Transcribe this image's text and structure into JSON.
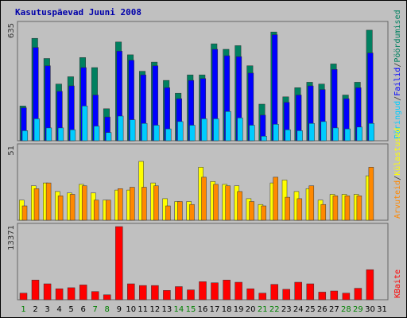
{
  "title": "Kasutuspäevad Juuni 2008",
  "colors": {
    "visits": "#008060",
    "pages": "#0000ff",
    "hits": "#00ccff",
    "unique": "#ffff00",
    "visits_top": "#ff8800",
    "bandwidth": "#ff0000",
    "weekday_label": "#000000",
    "weekend_label": "#008000",
    "title": "#0000aa"
  },
  "chart_data": [
    {
      "type": "bar",
      "panel": "top",
      "ymax_label": "635",
      "ylim": [
        0,
        635
      ],
      "categories": [
        "1",
        "2",
        "3",
        "4",
        "5",
        "6",
        "7",
        "8",
        "9",
        "10",
        "11",
        "12",
        "13",
        "14",
        "15",
        "16",
        "17",
        "18",
        "19",
        "20",
        "21",
        "22",
        "23",
        "24",
        "25",
        "26",
        "27",
        "28",
        "29",
        "30",
        "31"
      ],
      "legend": [
        "Päringud",
        "Failid",
        "Pöördumised"
      ],
      "series": [
        {
          "name": "Pöördumised",
          "values": [
            190,
            560,
            450,
            310,
            350,
            455,
            400,
            175,
            540,
            470,
            380,
            430,
            330,
            260,
            360,
            360,
            530,
            500,
            520,
            410,
            200,
            595,
            240,
            290,
            320,
            310,
            420,
            250,
            320,
            605,
            0
          ]
        },
        {
          "name": "Failid",
          "values": [
            180,
            510,
            410,
            270,
            300,
            400,
            250,
            130,
            490,
            440,
            360,
            410,
            290,
            230,
            330,
            340,
            500,
            465,
            460,
            370,
            140,
            580,
            210,
            250,
            300,
            280,
            390,
            230,
            290,
            480,
            0
          ]
        },
        {
          "name": "Päringud",
          "values": [
            55,
            120,
            70,
            70,
            60,
            190,
            80,
            45,
            135,
            115,
            95,
            85,
            65,
            105,
            85,
            120,
            120,
            160,
            125,
            85,
            25,
            90,
            60,
            55,
            95,
            105,
            70,
            65,
            75,
            95,
            0
          ]
        }
      ]
    },
    {
      "type": "bar",
      "panel": "middle",
      "ymax_label": "51",
      "ylim": [
        0,
        51
      ],
      "categories": [
        "1",
        "2",
        "3",
        "4",
        "5",
        "6",
        "7",
        "8",
        "9",
        "10",
        "11",
        "12",
        "13",
        "14",
        "15",
        "16",
        "17",
        "18",
        "19",
        "20",
        "21",
        "22",
        "23",
        "24",
        "25",
        "26",
        "27",
        "28",
        "29",
        "30",
        "31"
      ],
      "legend": [
        "Arvuteid",
        "Külastused"
      ],
      "series": [
        {
          "name": "Külastused",
          "values": [
            14,
            24,
            26,
            20,
            19,
            25,
            19,
            14,
            21,
            21,
            41,
            26,
            15,
            13,
            13,
            37,
            27,
            25,
            24,
            15,
            11,
            26,
            28,
            20,
            22,
            14,
            18,
            18,
            18,
            31,
            0
          ]
        },
        {
          "name": "Arvuteid",
          "values": [
            10,
            22,
            26,
            17,
            18,
            24,
            14,
            14,
            22,
            23,
            23,
            24,
            10,
            13,
            11,
            30,
            25,
            24,
            20,
            13,
            10,
            30,
            16,
            15,
            24,
            11,
            17,
            17,
            17,
            37,
            0
          ]
        }
      ]
    },
    {
      "type": "bar",
      "panel": "bottom",
      "ymax_label": "13371",
      "ylim": [
        0,
        13371
      ],
      "categories": [
        "1",
        "2",
        "3",
        "4",
        "5",
        "6",
        "7",
        "8",
        "9",
        "10",
        "11",
        "12",
        "13",
        "14",
        "15",
        "16",
        "17",
        "18",
        "19",
        "20",
        "21",
        "22",
        "23",
        "24",
        "25",
        "26",
        "27",
        "28",
        "29",
        "30",
        "31"
      ],
      "legend": [
        "KBaite"
      ],
      "series": [
        {
          "name": "KBaite",
          "values": [
            1200,
            3600,
            2900,
            2000,
            2200,
            2700,
            1500,
            900,
            13371,
            2900,
            2600,
            2600,
            1700,
            2400,
            1800,
            3300,
            3100,
            3600,
            3200,
            2000,
            1200,
            2800,
            1900,
            3200,
            2900,
            1400,
            1600,
            1200,
            2100,
            5500,
            0
          ]
        }
      ]
    }
  ],
  "days": [
    {
      "label": "1",
      "weekend": true
    },
    {
      "label": "2",
      "weekend": false
    },
    {
      "label": "3",
      "weekend": false
    },
    {
      "label": "4",
      "weekend": false
    },
    {
      "label": "5",
      "weekend": false
    },
    {
      "label": "6",
      "weekend": false
    },
    {
      "label": "7",
      "weekend": true
    },
    {
      "label": "8",
      "weekend": true
    },
    {
      "label": "9",
      "weekend": false
    },
    {
      "label": "10",
      "weekend": false
    },
    {
      "label": "11",
      "weekend": false
    },
    {
      "label": "12",
      "weekend": false
    },
    {
      "label": "13",
      "weekend": false
    },
    {
      "label": "14",
      "weekend": true
    },
    {
      "label": "15",
      "weekend": true
    },
    {
      "label": "16",
      "weekend": false
    },
    {
      "label": "17",
      "weekend": false
    },
    {
      "label": "18",
      "weekend": false
    },
    {
      "label": "19",
      "weekend": false
    },
    {
      "label": "20",
      "weekend": false
    },
    {
      "label": "21",
      "weekend": true
    },
    {
      "label": "22",
      "weekend": true
    },
    {
      "label": "23",
      "weekend": false
    },
    {
      "label": "24",
      "weekend": false
    },
    {
      "label": "25",
      "weekend": false
    },
    {
      "label": "26",
      "weekend": false
    },
    {
      "label": "27",
      "weekend": false
    },
    {
      "label": "28",
      "weekend": true
    },
    {
      "label": "29",
      "weekend": true
    },
    {
      "label": "30",
      "weekend": false
    },
    {
      "label": "31",
      "weekend": false
    }
  ]
}
